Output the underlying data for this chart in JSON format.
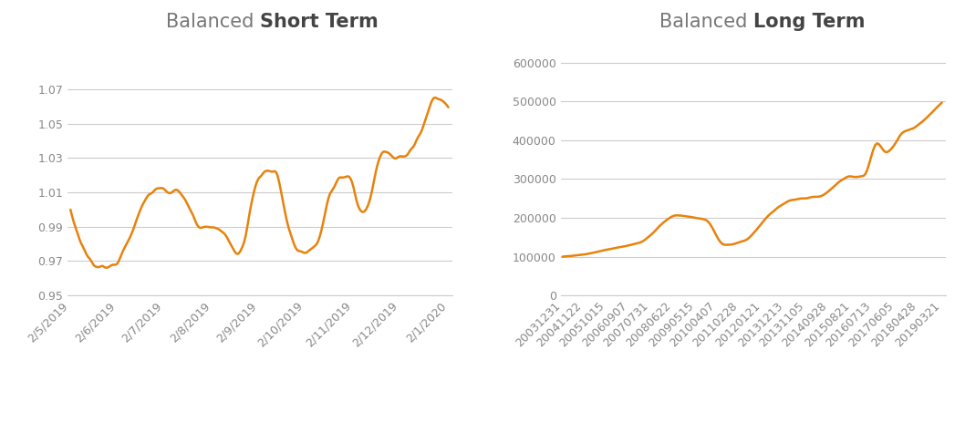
{
  "title1_normal": "Balanced ",
  "title1_bold": "Short Term",
  "title2_normal": "Balanced ",
  "title2_bold": "Long Term",
  "line_color": "#E8820C",
  "line_width": 1.8,
  "background_color": "#FFFFFF",
  "grid_color": "#CCCCCC",
  "title_color": "#777777",
  "title_bold_color": "#444444",
  "title_fontsize": 15,
  "tick_fontsize": 9,
  "tick_color": "#888888",
  "short_xlabels": [
    "2/5/2019",
    "2/6/2019",
    "2/7/2019",
    "2/8/2019",
    "2/9/2019",
    "2/10/2019",
    "2/11/2019",
    "2/12/2019",
    "2/1/2020"
  ],
  "short_ylim": [
    0.95,
    1.09
  ],
  "short_yticks": [
    0.95,
    0.97,
    0.99,
    1.01,
    1.03,
    1.05,
    1.07
  ],
  "long_xlabels": [
    "20031231",
    "20041122",
    "20051015",
    "20060907",
    "20070731",
    "20080622",
    "20090515",
    "20100407",
    "20110228",
    "20120121",
    "20131213",
    "20131105",
    "20140928",
    "20150821",
    "20160713",
    "20170605",
    "20180428",
    "20190321"
  ],
  "long_ylim": [
    0,
    620000
  ],
  "long_yticks": [
    0,
    100000,
    200000,
    300000,
    400000,
    500000,
    600000
  ]
}
